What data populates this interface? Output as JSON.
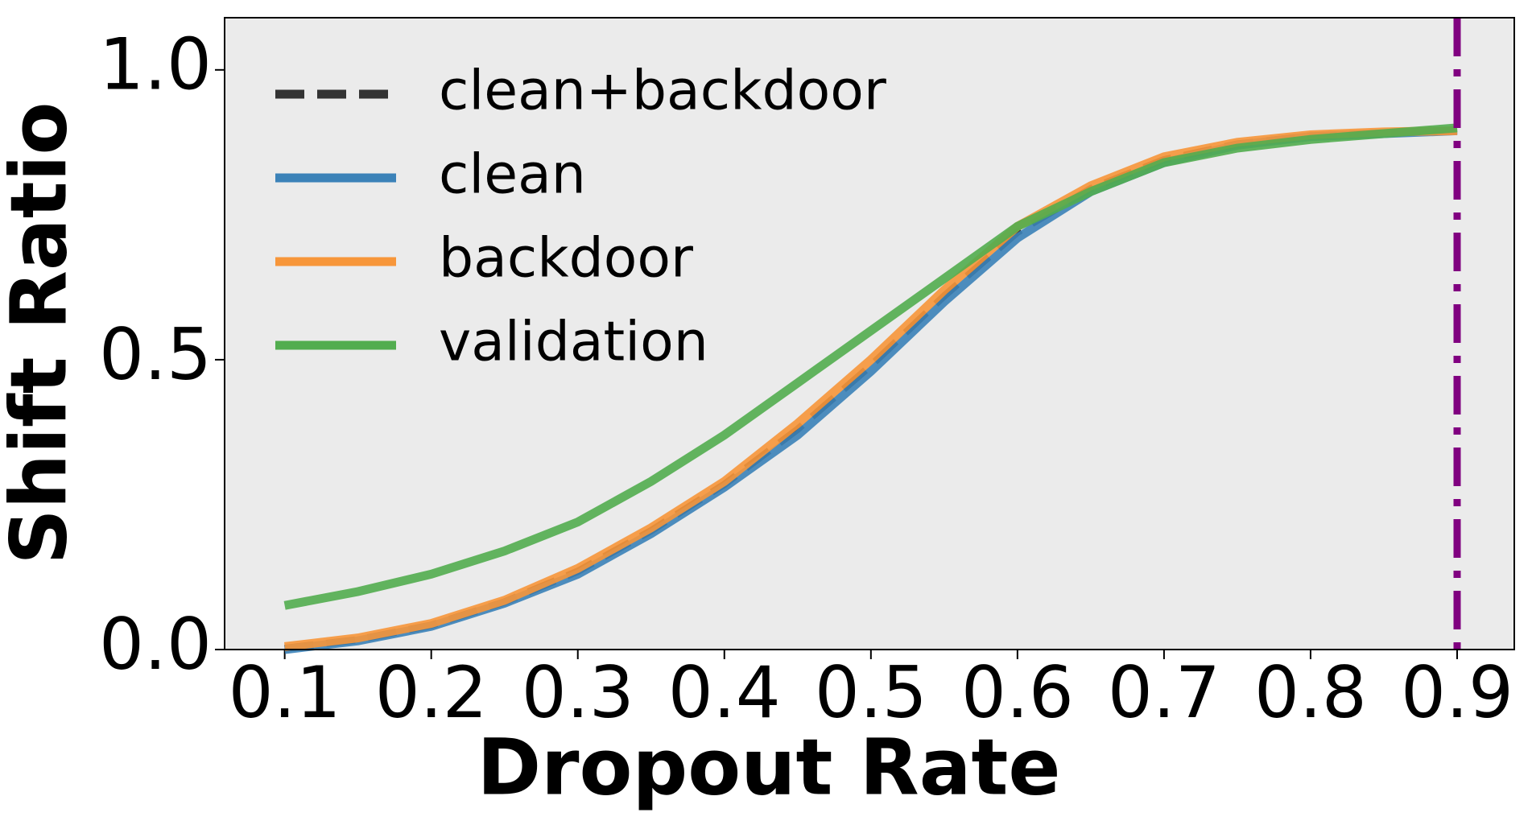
{
  "chart_data": {
    "type": "line",
    "xlabel": "Dropout Rate",
    "ylabel": "Shift Ratio",
    "x": [
      0.1,
      0.15,
      0.2,
      0.25,
      0.3,
      0.35,
      0.4,
      0.45,
      0.5,
      0.55,
      0.6,
      0.65,
      0.7,
      0.75,
      0.8,
      0.85,
      0.9
    ],
    "series": [
      {
        "name": "clean+backdoor",
        "color": "#333333",
        "dash": "dashed",
        "values": [
          0.002,
          0.017,
          0.042,
          0.082,
          0.135,
          0.205,
          0.285,
          0.38,
          0.49,
          0.61,
          0.72,
          0.795,
          0.845,
          0.872,
          0.886,
          0.891,
          0.895
        ]
      },
      {
        "name": "clean",
        "color": "#3b82b8",
        "dash": "solid",
        "values": [
          0.0,
          0.015,
          0.04,
          0.08,
          0.13,
          0.2,
          0.28,
          0.37,
          0.48,
          0.6,
          0.71,
          0.79,
          0.84,
          0.87,
          0.885,
          0.89,
          0.895
        ]
      },
      {
        "name": "backdoor",
        "color": "#f7963a",
        "dash": "solid",
        "values": [
          0.005,
          0.02,
          0.045,
          0.085,
          0.14,
          0.21,
          0.29,
          0.39,
          0.5,
          0.62,
          0.73,
          0.8,
          0.85,
          0.875,
          0.888,
          0.893,
          0.895
        ]
      },
      {
        "name": "validation",
        "color": "#52ad4f",
        "dash": "solid",
        "values": [
          0.076,
          0.1,
          0.13,
          0.17,
          0.22,
          0.29,
          0.37,
          0.46,
          0.55,
          0.64,
          0.73,
          0.79,
          0.84,
          0.865,
          0.88,
          0.89,
          0.9
        ]
      }
    ],
    "vline": {
      "x": 0.9,
      "color": "#800080"
    },
    "xlim": [
      0.059,
      0.939
    ],
    "ylim": [
      0,
      1.09
    ],
    "xticks": [
      0.1,
      0.2,
      0.3,
      0.4,
      0.5,
      0.6,
      0.7,
      0.8,
      0.9
    ],
    "yticks": [
      {
        "value": 0,
        "label": "0.0"
      },
      0.5,
      {
        "value": 1,
        "label": "1.0"
      }
    ],
    "legend": "upper left",
    "background": "#ebebeb"
  }
}
